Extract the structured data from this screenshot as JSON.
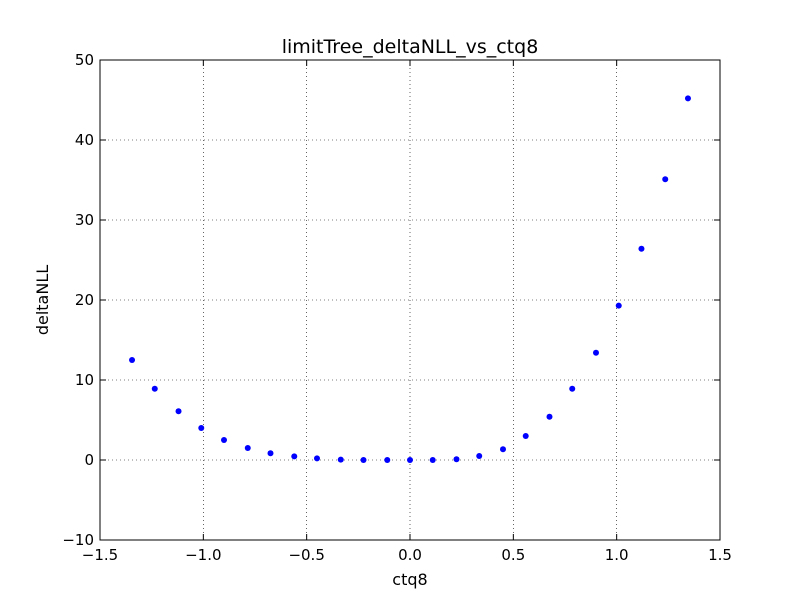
{
  "chart_data": {
    "type": "scatter",
    "title": "limitTree_deltaNLL_vs_ctq8",
    "xlabel": "ctq8",
    "ylabel": "deltaNLL",
    "xlim": [
      -1.5,
      1.5
    ],
    "ylim": [
      -10,
      50
    ],
    "xticks": [
      -1.5,
      -1.0,
      -0.5,
      0.0,
      0.5,
      1.0,
      1.5
    ],
    "xtick_labels": [
      "−1.5",
      "−1.0",
      "−0.5",
      "0.0",
      "0.5",
      "1.0",
      "1.5"
    ],
    "yticks": [
      -10,
      0,
      10,
      20,
      30,
      40,
      50
    ],
    "ytick_labels": [
      "−10",
      "0",
      "10",
      "20",
      "30",
      "40",
      "50"
    ],
    "grid": true,
    "marker_color": "#0000ff",
    "x": [
      -1.345,
      -1.235,
      -1.12,
      -1.01,
      -0.9,
      -0.785,
      -0.675,
      -0.56,
      -0.45,
      -0.335,
      -0.225,
      -0.11,
      0.0,
      0.11,
      0.225,
      0.335,
      0.45,
      0.56,
      0.675,
      0.785,
      0.9,
      1.01,
      1.12,
      1.235,
      1.345
    ],
    "y": [
      12.5,
      8.9,
      6.1,
      4.0,
      2.5,
      1.5,
      0.85,
      0.45,
      0.2,
      0.05,
      0.0,
      0.0,
      0.0,
      0.0,
      0.1,
      0.5,
      1.35,
      3.0,
      5.4,
      8.9,
      13.4,
      19.3,
      26.4,
      35.1,
      45.2
    ]
  }
}
